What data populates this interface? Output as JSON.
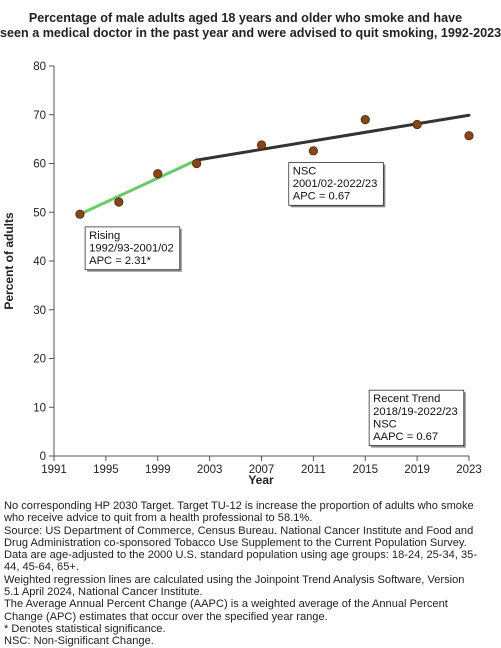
{
  "chart_data": {
    "type": "line",
    "title_lines": [
      "Percentage of  male adults aged 18 years and older who smoke and have",
      "seen a medical doctor in the past year and were advised to quit smoking, 1992-2023"
    ],
    "xlabel": "Year",
    "ylabel": "Percent of adults",
    "xlim": [
      1991,
      2023
    ],
    "ylim": [
      0,
      80
    ],
    "x_ticks": [
      1991,
      1995,
      1999,
      2003,
      2007,
      2011,
      2015,
      2019,
      2023
    ],
    "y_ticks": [
      0,
      10,
      20,
      30,
      40,
      50,
      60,
      70,
      80
    ],
    "grid": false,
    "points": {
      "x": [
        1993,
        1996,
        1999,
        2002,
        2007,
        2011,
        2015,
        2019,
        2023
      ],
      "y": [
        49.6,
        52.1,
        57.9,
        60.0,
        63.8,
        62.6,
        69.0,
        68.0,
        65.7
      ]
    },
    "trend_segments": [
      {
        "x": [
          1993,
          2002
        ],
        "y": [
          49.6,
          60.7
        ],
        "color": "#66cc66"
      },
      {
        "x": [
          2002,
          2023
        ],
        "y": [
          60.7,
          69.9
        ],
        "color": "#333333"
      }
    ],
    "annotations": [
      {
        "lines": [
          "Rising",
          "1992/93-2001/02",
          "APC =  2.31*"
        ],
        "x": 1993.4,
        "y": 47.0
      },
      {
        "lines": [
          "NSC",
          "2001/02-2022/23",
          "APC =  0.67"
        ],
        "x": 2009.1,
        "y": 60.2
      },
      {
        "lines": [
          "Recent Trend",
          "2018/19-2022/23",
          "NSC",
          "AAPC =  0.67"
        ],
        "x": 2015.3,
        "y": 13.5
      }
    ],
    "colors": {
      "marker_fill": "#8b4513",
      "marker_stroke": "#4a2a0a",
      "axis": "#555555"
    }
  },
  "footnotes": [
    "No corresponding HP 2030 Target. Target TU-12 is increase the proportion of adults who smoke",
    "who receive advice to quit from a health professional to 58.1%.",
    "Source: US Department of Commerce, Census Bureau. National Cancer Institute and Food and",
    "Drug Administration co-sponsored Tobacco Use Supplement to the Current Population Survey.",
    "Data are age-adjusted to the 2000 U.S. standard population using age groups: 18-24, 25-34, 35-",
    "44, 45-64, 65+.",
    "Weighted regression lines are calculated using the Joinpoint Trend Analysis Software, Version",
    "5.1 April 2024, National Cancer Institute.",
    "The Average Annual Percent Change (AAPC) is a weighted average of the Annual Percent",
    "Change (APC) estimates that occur over the specified year range.",
    "* Denotes statistical significance.",
    "NSC: Non-Significant Change."
  ]
}
